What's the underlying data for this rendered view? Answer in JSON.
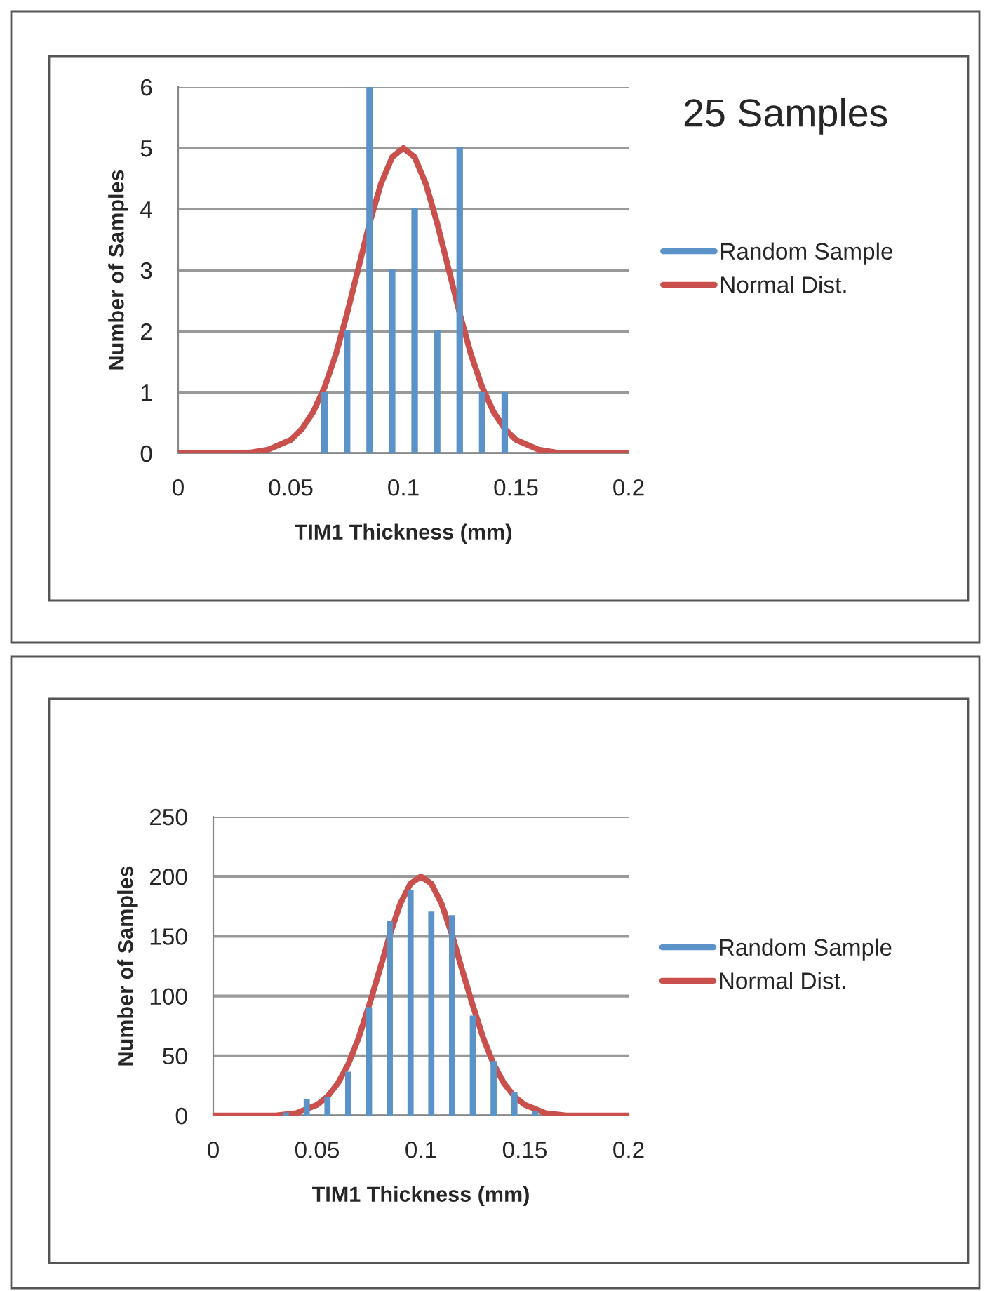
{
  "chart_data": [
    {
      "type": "bar",
      "xlabel": "TIM1 Thickness (mm)",
      "ylabel": "Number of Samples",
      "annotations": [
        "25 Samples"
      ],
      "xlim": [
        0,
        0.2
      ],
      "xticks": [
        0,
        0.05,
        0.1,
        0.15,
        0.2
      ],
      "ylim": [
        0,
        6
      ],
      "yticks": [
        0,
        1,
        2,
        3,
        4,
        5,
        6
      ],
      "grid": "y",
      "legend": "right",
      "series": [
        {
          "name": "Random Sample",
          "color": "#5b93c9",
          "x": [
            0.045,
            0.055,
            0.065,
            0.075,
            0.085,
            0.095,
            0.105,
            0.115,
            0.125,
            0.135,
            0.145,
            0.155
          ],
          "values": [
            0,
            0,
            1,
            2,
            6,
            3,
            4,
            2,
            5,
            1,
            1,
            0
          ]
        },
        {
          "name": "Normal Dist.",
          "type": "line",
          "color": "#c9504c",
          "x": [
            0,
            0.02,
            0.03,
            0.04,
            0.05,
            0.055,
            0.06,
            0.065,
            0.07,
            0.075,
            0.08,
            0.085,
            0.09,
            0.095,
            0.1,
            0.105,
            0.11,
            0.115,
            0.12,
            0.125,
            0.13,
            0.135,
            0.14,
            0.145,
            0.15,
            0.16,
            0.17,
            0.18,
            0.2
          ],
          "values": [
            0,
            0,
            0,
            0.06,
            0.22,
            0.4,
            0.68,
            1.08,
            1.62,
            2.29,
            3.03,
            3.77,
            4.41,
            4.85,
            5,
            4.85,
            4.41,
            3.77,
            3.03,
            2.29,
            1.62,
            1.08,
            0.68,
            0.4,
            0.22,
            0.06,
            0,
            0,
            0
          ]
        }
      ]
    },
    {
      "type": "bar",
      "xlabel": "TIM1 Thickness (mm)",
      "ylabel": "Number of Samples",
      "xlim": [
        0,
        0.2
      ],
      "xticks": [
        0,
        0.05,
        0.1,
        0.15,
        0.2
      ],
      "ylim": [
        0,
        250
      ],
      "yticks": [
        0,
        50,
        100,
        150,
        200,
        250
      ],
      "grid": "y",
      "legend": "right",
      "series": [
        {
          "name": "Random Sample",
          "color": "#5b93c9",
          "x": [
            0.035,
            0.045,
            0.055,
            0.065,
            0.075,
            0.085,
            0.095,
            0.105,
            0.115,
            0.125,
            0.135,
            0.145,
            0.155
          ],
          "values": [
            2,
            13,
            15,
            36,
            90,
            162,
            188,
            170,
            167,
            83,
            45,
            19,
            3
          ]
        },
        {
          "name": "Normal Dist.",
          "type": "line",
          "color": "#c9504c",
          "x": [
            0,
            0.02,
            0.03,
            0.04,
            0.05,
            0.055,
            0.06,
            0.065,
            0.07,
            0.075,
            0.08,
            0.085,
            0.09,
            0.095,
            0.1,
            0.105,
            0.11,
            0.115,
            0.12,
            0.125,
            0.13,
            0.135,
            0.14,
            0.145,
            0.15,
            0.16,
            0.17,
            0.18,
            0.2
          ],
          "values": [
            0,
            0,
            0,
            2,
            9,
            16,
            27,
            43,
            65,
            92,
            121,
            151,
            177,
            194,
            200,
            194,
            177,
            151,
            121,
            92,
            65,
            43,
            27,
            16,
            9,
            2,
            0,
            0,
            0
          ]
        }
      ]
    }
  ]
}
